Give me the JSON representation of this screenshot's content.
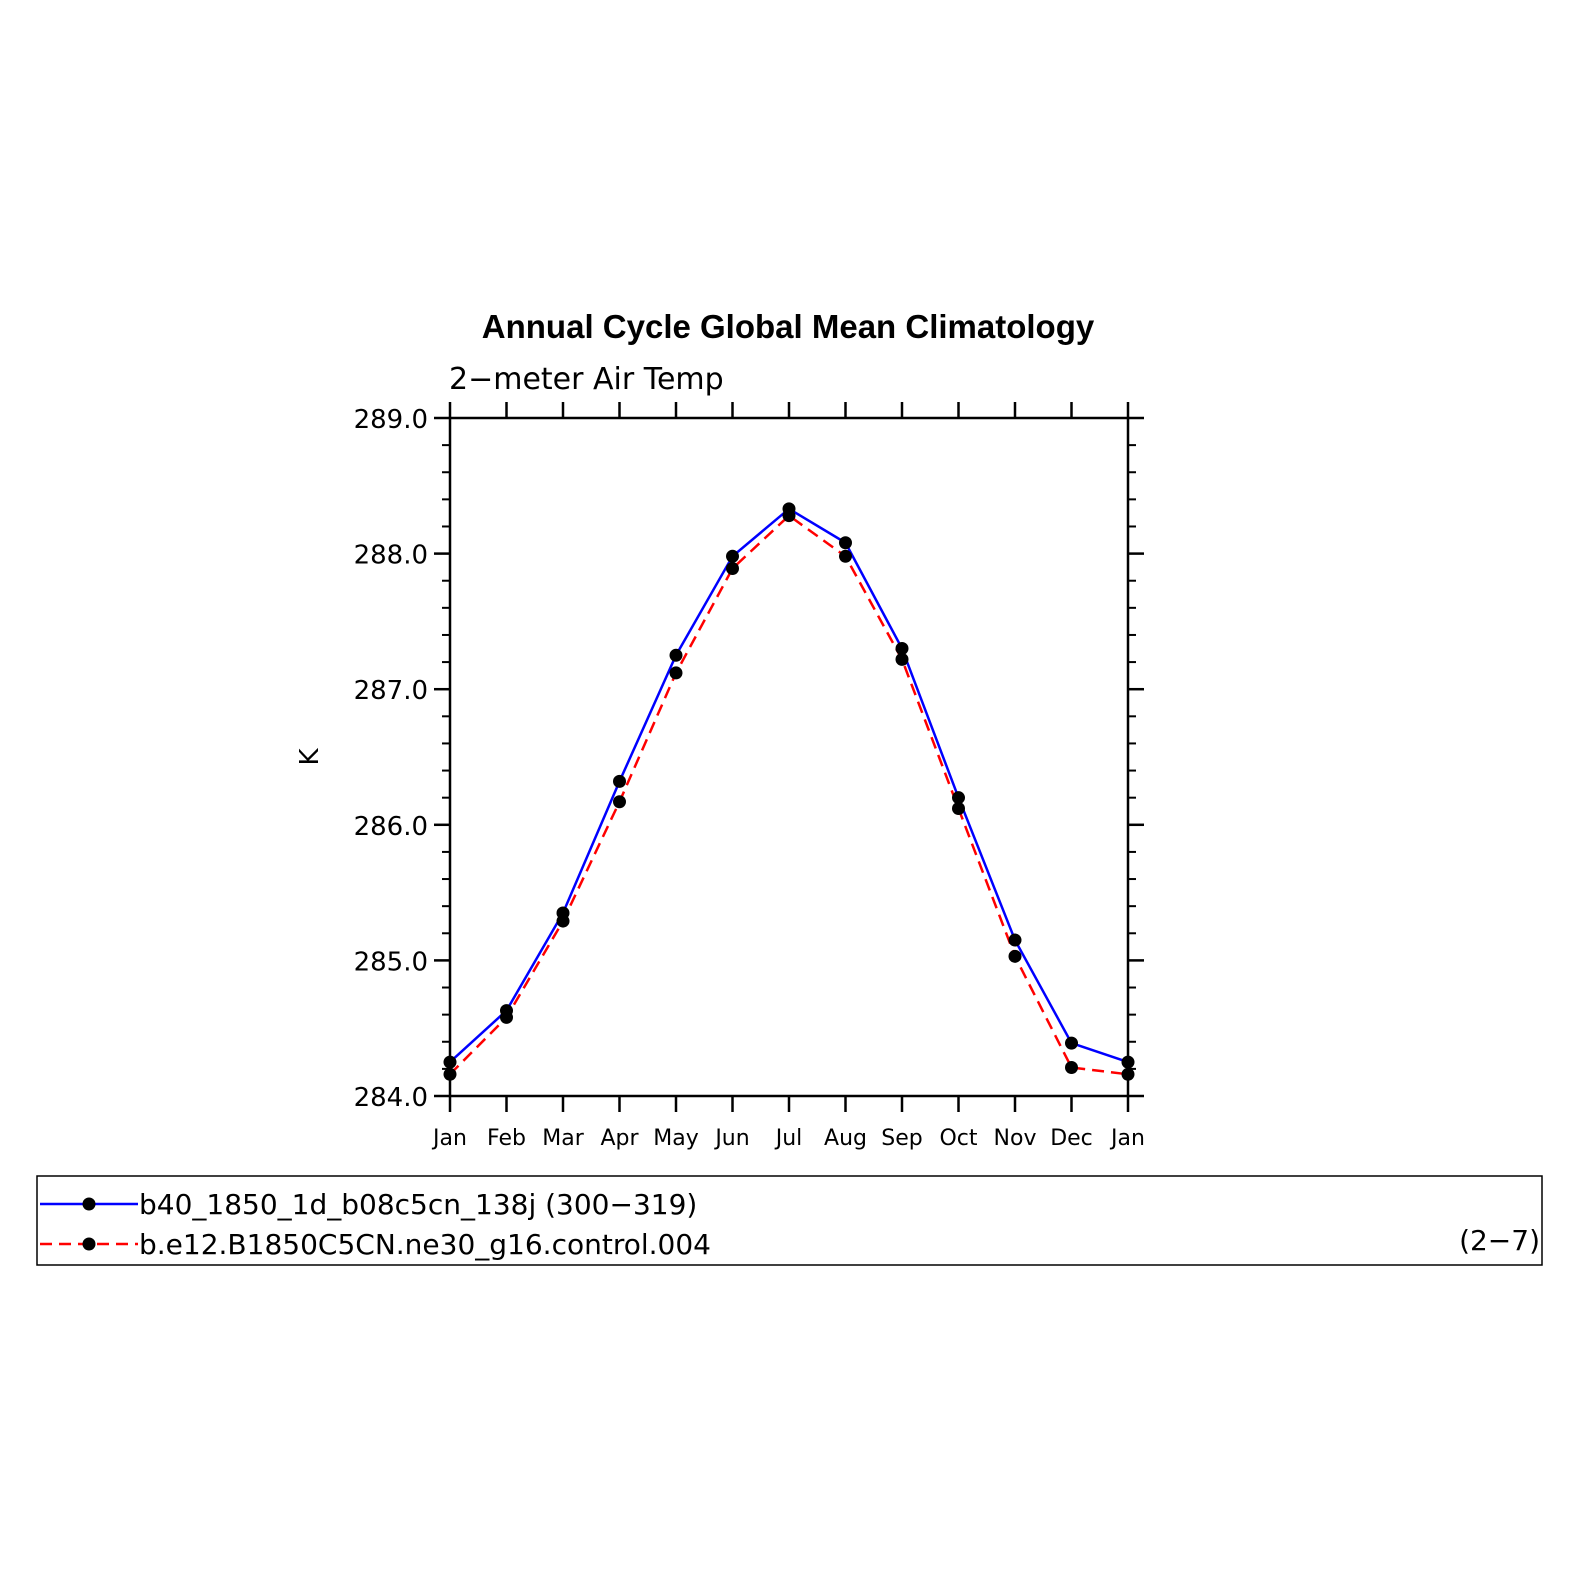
{
  "chart_data": {
    "type": "line",
    "title": "Annual Cycle Global Mean Climatology",
    "subtitle": "2−meter Air Temp",
    "ylabel": "K",
    "xlabel": "",
    "categories": [
      "Jan",
      "Feb",
      "Mar",
      "Apr",
      "May",
      "Jun",
      "Jul",
      "Aug",
      "Sep",
      "Oct",
      "Nov",
      "Dec",
      "Jan"
    ],
    "ylim": [
      284.0,
      289.0
    ],
    "yticks": [
      "289.0",
      "288.0",
      "287.0",
      "286.0",
      "285.0",
      "284.0"
    ],
    "grid": false,
    "legend_position": "bottom",
    "series": [
      {
        "name": "b40_1850_1d_b08c5cn_138j (300−319)",
        "color": "#0000ff",
        "dash": "solid",
        "values": [
          284.25,
          284.63,
          285.35,
          286.32,
          287.25,
          287.98,
          288.33,
          288.08,
          287.3,
          286.2,
          285.15,
          284.39,
          284.25
        ]
      },
      {
        "name": "b.e12.B1850C5CN.ne30_g16.control.004",
        "color": "#ff0000",
        "dash": "dashed",
        "values": [
          284.16,
          284.58,
          285.29,
          286.17,
          287.12,
          287.89,
          288.28,
          287.98,
          287.22,
          286.12,
          285.03,
          284.21,
          284.16
        ]
      }
    ],
    "annotation": "(2−7)"
  }
}
